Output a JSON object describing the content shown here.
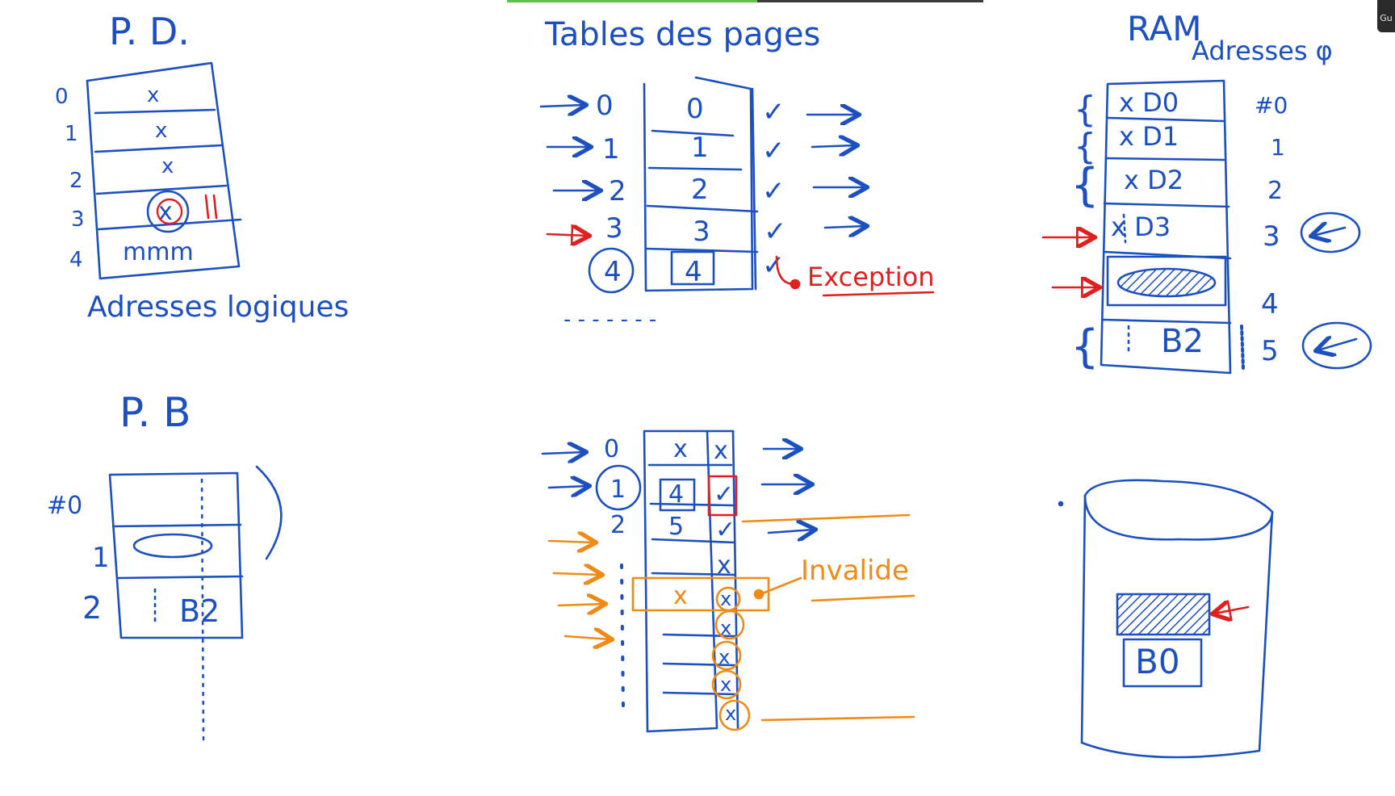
{
  "colors": {
    "ink_blue": "#1c4fbf",
    "ink_red": "#e11f1f",
    "ink_orange": "#f08a17",
    "bg": "#ffffff"
  },
  "screen": {
    "corner_label": "Gu"
  },
  "pd": {
    "title": "P. D.",
    "rows": [
      {
        "index": "0",
        "mark": "x"
      },
      {
        "index": "1",
        "mark": "x"
      },
      {
        "index": "2",
        "mark": "x"
      },
      {
        "index": "3",
        "mark": "x"
      },
      {
        "index": "4",
        "mark": "mmm"
      }
    ],
    "caption": "Adresses logiques"
  },
  "tables": {
    "title": "Tables des pages",
    "rows": [
      {
        "index": "0",
        "frame": "0",
        "valid": "✓"
      },
      {
        "index": "1",
        "frame": "1",
        "valid": "✓"
      },
      {
        "index": "2",
        "frame": "2",
        "valid": "✓"
      },
      {
        "index": "3",
        "frame": "3",
        "valid": "✓"
      },
      {
        "index": "4",
        "frame": "4",
        "valid": "✓"
      }
    ],
    "exception_label": "Exception",
    "ellipsis": "- - - - - - -"
  },
  "ram": {
    "title": "RAM",
    "subtitle": "Adresses φ",
    "frames": [
      {
        "label": "x D0",
        "index": "#0"
      },
      {
        "label": "x D1",
        "index": "1"
      },
      {
        "label": "x D2",
        "index": "2"
      },
      {
        "label": "x D3",
        "index": "3"
      },
      {
        "label": "",
        "index": "4"
      },
      {
        "label": "B2",
        "index": "5"
      }
    ]
  },
  "pb": {
    "title": "P. B",
    "rows": [
      {
        "index": "#0",
        "label": ""
      },
      {
        "index": "1",
        "label": ""
      },
      {
        "index": "2",
        "label": "B2"
      }
    ]
  },
  "table2": {
    "rows": [
      {
        "index": "0",
        "frame": "x",
        "flag": "x"
      },
      {
        "index": "1",
        "frame": "4",
        "flag": "✓"
      },
      {
        "index": "2",
        "frame": "5",
        "flag": "✓"
      },
      {
        "index": "",
        "frame": "",
        "flag": "x"
      },
      {
        "index": "",
        "frame": "x",
        "flag": "x"
      },
      {
        "index": "",
        "frame": "",
        "flag": "x"
      },
      {
        "index": "",
        "frame": "",
        "flag": "x"
      },
      {
        "index": "",
        "frame": "",
        "flag": "x"
      },
      {
        "index": "",
        "frame": "",
        "flag": "x"
      }
    ],
    "invalid_label": "Invalide"
  },
  "disk": {
    "block_label": "B0"
  }
}
